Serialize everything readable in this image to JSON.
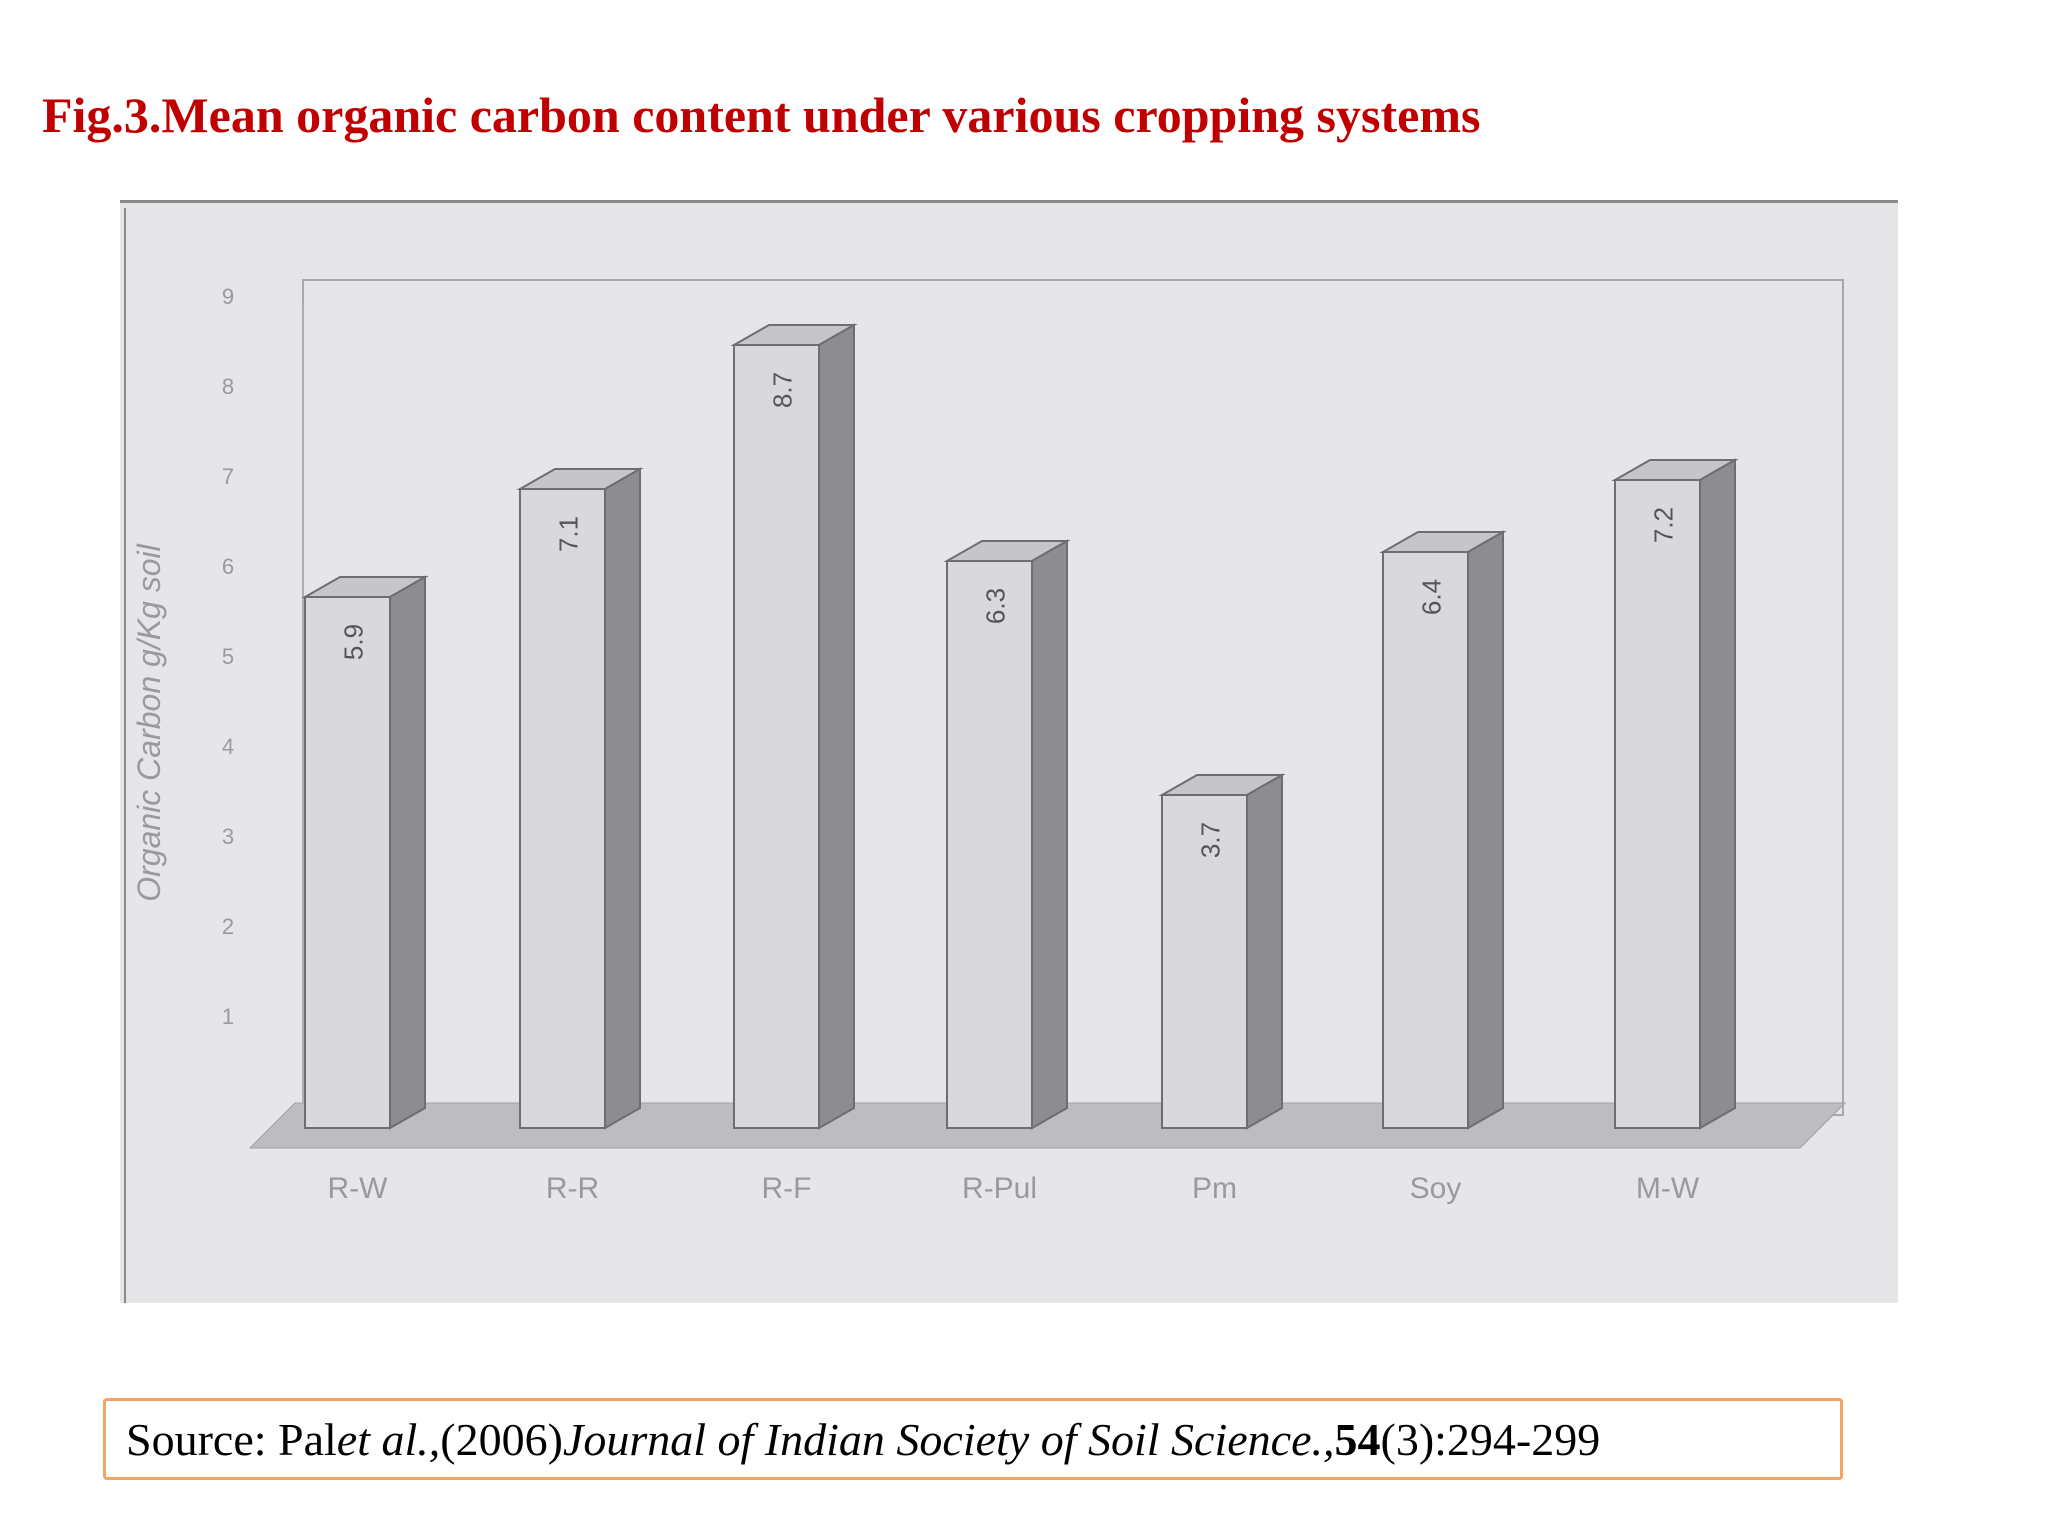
{
  "title": "Fig.3.Mean organic carbon content under various cropping systems",
  "source": {
    "prefix": "Source: Pal ",
    "authors_italic": "et al.,",
    "year": "(2006) ",
    "journal_italic": "Journal of Indian Society of Soil Science.,",
    "volume_bold": "54",
    "pages": "(3):294-299"
  },
  "chart_data": {
    "type": "bar",
    "title": "",
    "ylabel": "Organic Carbon g/Kg soil",
    "xlabel": "",
    "categories": [
      "R-W",
      "R-R",
      "R-F",
      "R-Pul",
      "Pm",
      "Soy",
      "M-W"
    ],
    "values": [
      5.9,
      7.1,
      8.7,
      6.3,
      3.7,
      6.4,
      7.2
    ],
    "value_labels": [
      "5.9",
      "7.1",
      "8.7",
      "6.3",
      "3.7",
      "6.4",
      "7.2"
    ],
    "yticks": [
      "1",
      "2",
      "3",
      "4",
      "5",
      "6",
      "7",
      "8",
      "9"
    ],
    "ylim": [
      0,
      9
    ],
    "style": "3d-bar",
    "colors": {
      "bar_front": "#d9d9db",
      "bar_top": "#c6c6c9",
      "bar_side": "#8d8d91",
      "floor": "#bdbdc0",
      "text": "#9a9a9e"
    }
  }
}
